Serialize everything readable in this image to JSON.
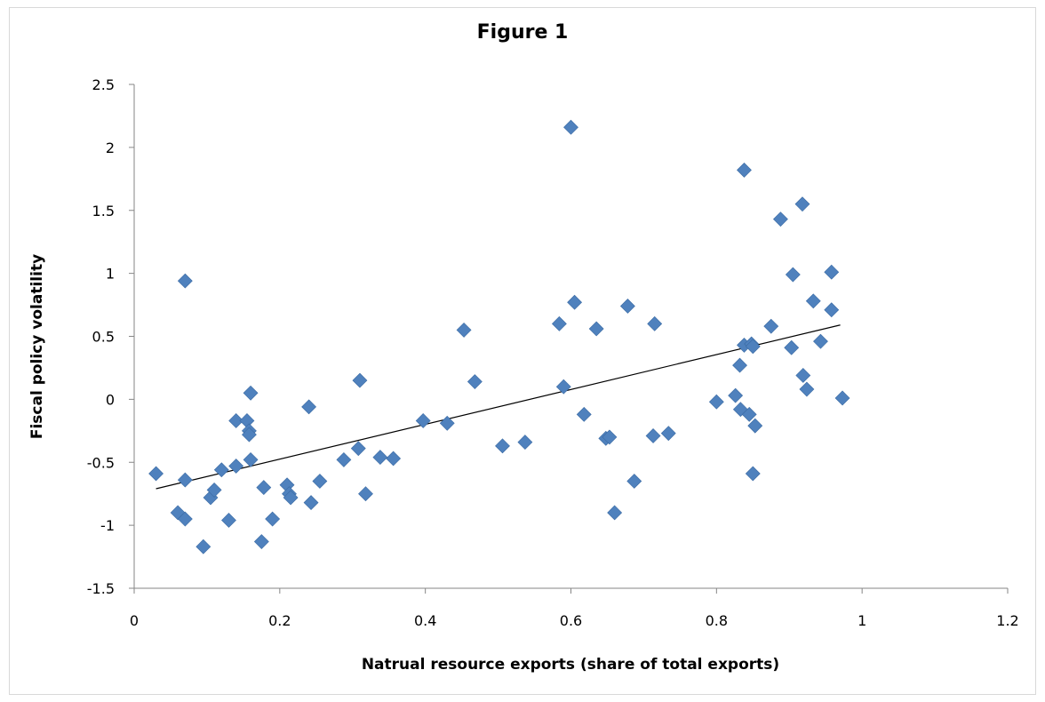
{
  "chart_data": {
    "type": "scatter",
    "title": "Figure 1",
    "xlabel": "Natrual resource exports (share of total exports)",
    "ylabel": "Fiscal policy volatility",
    "xlim": [
      0,
      1.2
    ],
    "ylim": [
      -1.5,
      2.5
    ],
    "xticks": [
      "0",
      "0.2",
      "0.4",
      "0.6",
      "0.8",
      "1",
      "1.2"
    ],
    "xtick_values": [
      0,
      0.2,
      0.4,
      0.6,
      0.8,
      1,
      1.2
    ],
    "yticks": [
      "2.5",
      "2",
      "1.5",
      "1",
      "0.5",
      "0",
      "-0.5",
      "-1",
      "-1.5"
    ],
    "ytick_values": [
      2.5,
      2,
      1.5,
      1,
      0.5,
      0,
      -0.5,
      -1,
      -1.5
    ],
    "grid": false,
    "legend": "none",
    "marker": "diamond",
    "marker_color": "#4f81bd",
    "trendline": {
      "type": "linear",
      "from": [
        0.03,
        -0.71
      ],
      "to": [
        0.97,
        0.59
      ],
      "color": "#000000"
    },
    "points": [
      [
        0.03,
        -0.59
      ],
      [
        0.06,
        -0.9
      ],
      [
        0.07,
        -0.64
      ],
      [
        0.07,
        -0.95
      ],
      [
        0.07,
        0.94
      ],
      [
        0.095,
        -1.17
      ],
      [
        0.105,
        -0.78
      ],
      [
        0.11,
        -0.72
      ],
      [
        0.12,
        -0.56
      ],
      [
        0.13,
        -0.96
      ],
      [
        0.14,
        -0.53
      ],
      [
        0.14,
        -0.17
      ],
      [
        0.155,
        -0.17
      ],
      [
        0.158,
        -0.25
      ],
      [
        0.158,
        -0.28
      ],
      [
        0.16,
        -0.48
      ],
      [
        0.16,
        0.05
      ],
      [
        0.175,
        -1.13
      ],
      [
        0.178,
        -0.7
      ],
      [
        0.19,
        -0.95
      ],
      [
        0.21,
        -0.68
      ],
      [
        0.213,
        -0.75
      ],
      [
        0.215,
        -0.78
      ],
      [
        0.24,
        -0.06
      ],
      [
        0.243,
        -0.82
      ],
      [
        0.255,
        -0.65
      ],
      [
        0.288,
        -0.48
      ],
      [
        0.308,
        -0.39
      ],
      [
        0.31,
        0.15
      ],
      [
        0.318,
        -0.75
      ],
      [
        0.338,
        -0.46
      ],
      [
        0.356,
        -0.47
      ],
      [
        0.397,
        -0.17
      ],
      [
        0.43,
        -0.19
      ],
      [
        0.453,
        0.55
      ],
      [
        0.468,
        0.14
      ],
      [
        0.506,
        -0.37
      ],
      [
        0.537,
        -0.34
      ],
      [
        0.584,
        0.6
      ],
      [
        0.59,
        0.1
      ],
      [
        0.6,
        2.16
      ],
      [
        0.605,
        0.77
      ],
      [
        0.618,
        -0.12
      ],
      [
        0.635,
        0.56
      ],
      [
        0.648,
        -0.31
      ],
      [
        0.653,
        -0.3
      ],
      [
        0.66,
        -0.9
      ],
      [
        0.678,
        0.74
      ],
      [
        0.687,
        -0.65
      ],
      [
        0.713,
        -0.29
      ],
      [
        0.715,
        0.6
      ],
      [
        0.734,
        -0.27
      ],
      [
        0.8,
        -0.02
      ],
      [
        0.826,
        0.03
      ],
      [
        0.832,
        0.27
      ],
      [
        0.833,
        -0.08
      ],
      [
        0.838,
        0.43
      ],
      [
        0.838,
        1.82
      ],
      [
        0.845,
        -0.12
      ],
      [
        0.848,
        0.44
      ],
      [
        0.85,
        0.42
      ],
      [
        0.85,
        -0.59
      ],
      [
        0.853,
        -0.21
      ],
      [
        0.875,
        0.58
      ],
      [
        0.888,
        1.43
      ],
      [
        0.903,
        0.41
      ],
      [
        0.905,
        0.99
      ],
      [
        0.918,
        1.55
      ],
      [
        0.919,
        0.19
      ],
      [
        0.924,
        0.08
      ],
      [
        0.933,
        0.78
      ],
      [
        0.943,
        0.46
      ],
      [
        0.958,
        1.01
      ],
      [
        0.958,
        0.71
      ],
      [
        0.973,
        0.01
      ]
    ]
  }
}
